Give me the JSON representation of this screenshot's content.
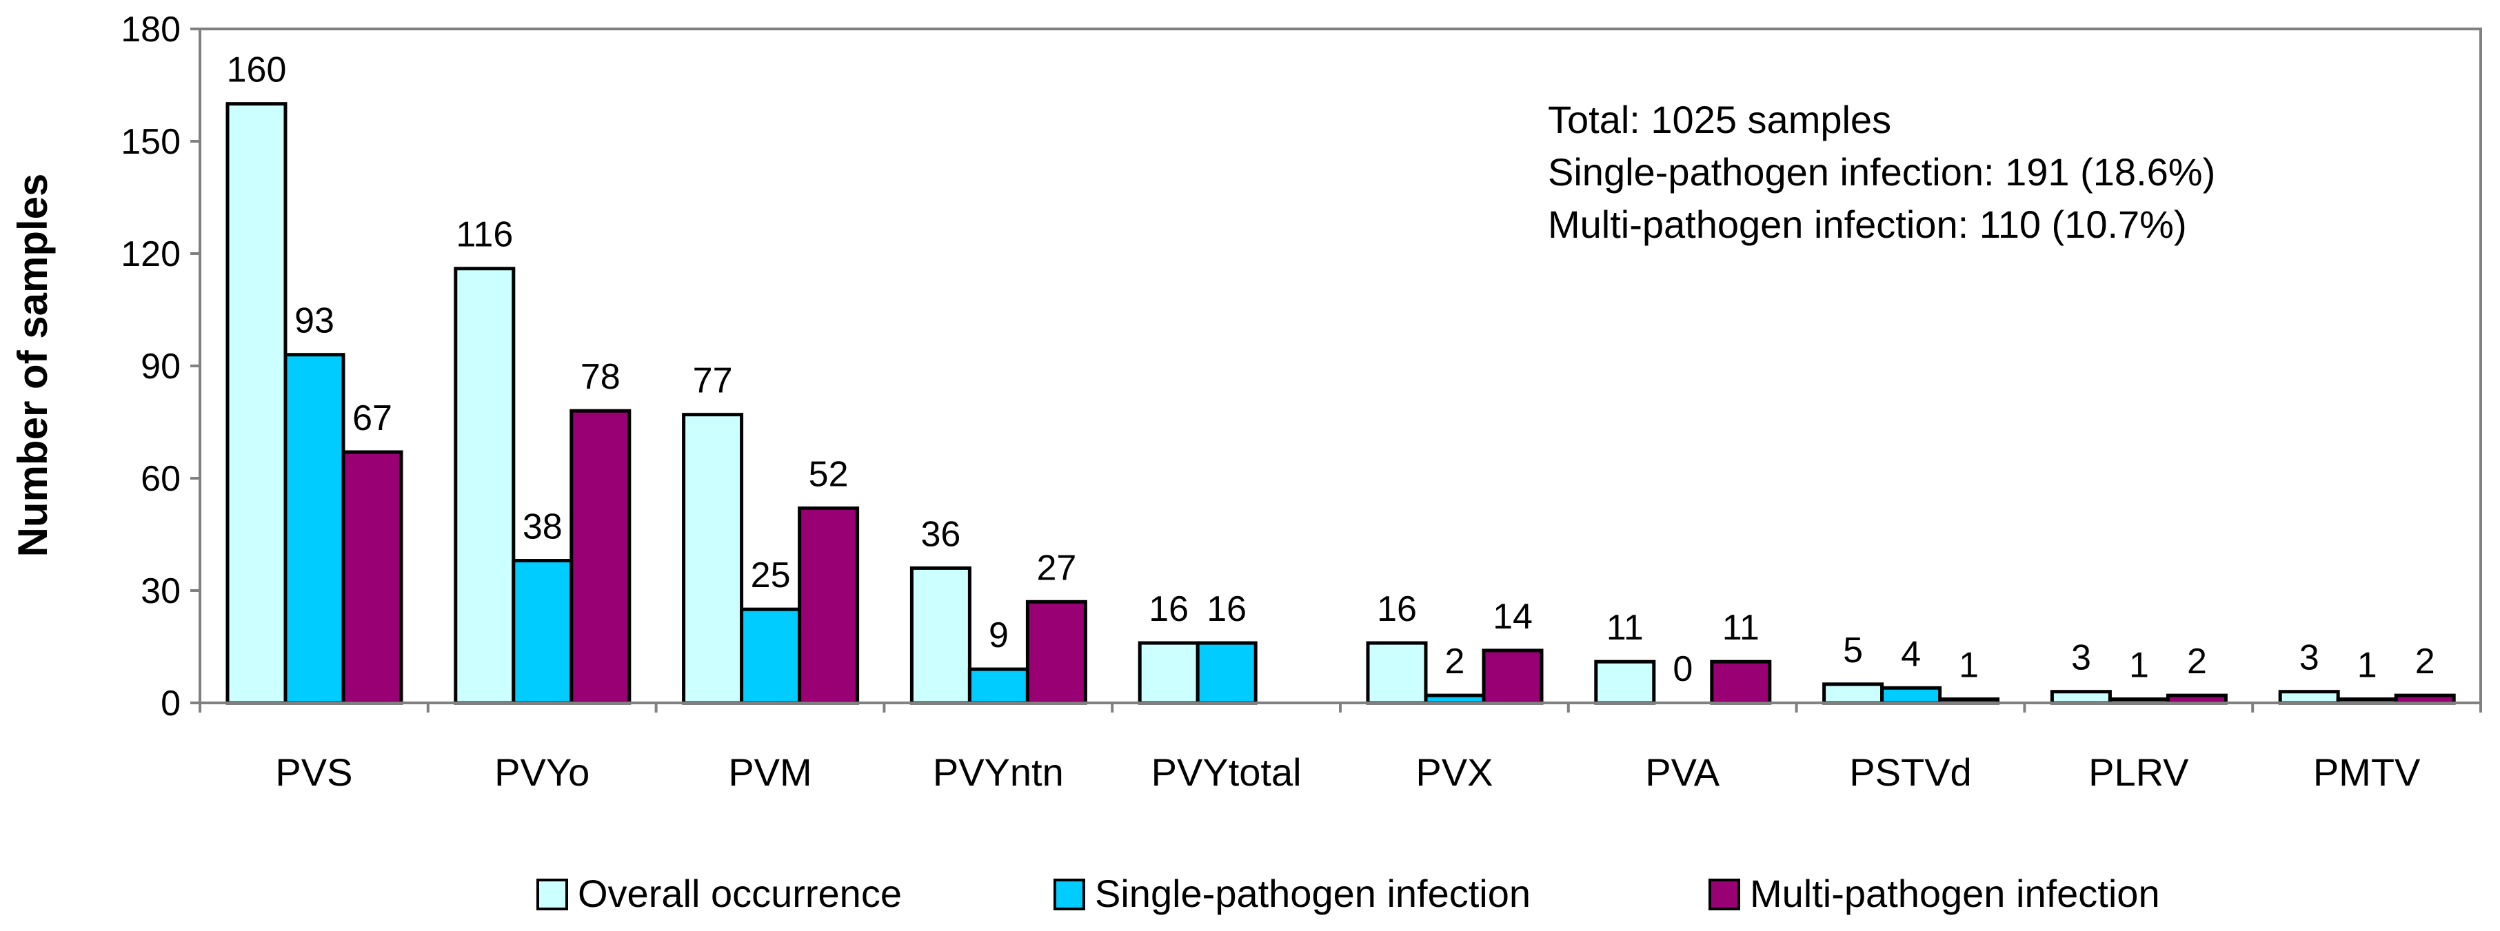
{
  "chart_data": {
    "type": "bar",
    "ylabel": "Number of samples",
    "xlabel": "",
    "ylim": [
      0,
      180
    ],
    "yticks": [
      0,
      30,
      60,
      90,
      120,
      150,
      180
    ],
    "grid": false,
    "categories": [
      "PVS",
      "PVYo",
      "PVM",
      "PVYntn",
      "PVYtotal",
      "PVX",
      "PVA",
      "PSTVd",
      "PLRV",
      "PMTV"
    ],
    "series": [
      {
        "name": "Overall occurrence",
        "color": "#CCFFFF",
        "values": [
          160,
          116,
          77,
          36,
          16,
          16,
          11,
          5,
          3,
          3
        ],
        "labels": [
          "160",
          "116",
          "77",
          "36",
          "16",
          "16",
          "11",
          "5",
          "3",
          "3"
        ]
      },
      {
        "name": "Single-pathogen infection",
        "color": "#00CCFF",
        "values": [
          93,
          38,
          25,
          9,
          16,
          2,
          0,
          4,
          1,
          1
        ],
        "labels": [
          "93",
          "38",
          "25",
          "9",
          "16",
          "2",
          "0",
          "4",
          "1",
          "1"
        ]
      },
      {
        "name": "Multi-pathogen infection",
        "color": "#990073",
        "values": [
          67,
          78,
          52,
          27,
          null,
          14,
          11,
          1,
          2,
          2
        ],
        "labels": [
          "67",
          "78",
          "52",
          "27",
          "",
          "14",
          "11",
          "1",
          "2",
          "2"
        ]
      }
    ],
    "annotations": [
      "Total: 1025 samples",
      "Single-pathogen infection: 191 (18.6%)",
      "Multi-pathogen infection: 110 (10.7%)"
    ],
    "legend_position": "bottom-center"
  }
}
